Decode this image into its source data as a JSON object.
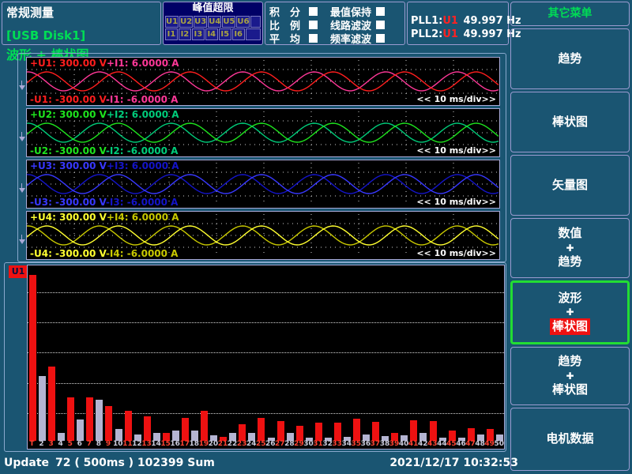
{
  "header": {
    "mode_label": "常规测量",
    "storage_label": "[USB Disk1]",
    "peak_over_limit": {
      "title": "峰值超限",
      "rows": [
        [
          "U1",
          "U2",
          "U3",
          "U4",
          "U5",
          "U6",
          ""
        ],
        [
          "I1",
          "I2",
          "I3",
          "I4",
          "I5",
          "I6",
          ""
        ]
      ]
    },
    "mode_toggles": [
      {
        "id": "integral",
        "c1": "积",
        "c2": "分"
      },
      {
        "id": "ratio",
        "c1": "比",
        "c2": "例"
      },
      {
        "id": "average",
        "c1": "平",
        "c2": "均"
      }
    ],
    "filter_toggles": [
      {
        "id": "max-hold",
        "label": "最值保持"
      },
      {
        "id": "line-filter",
        "label": "线路滤波"
      },
      {
        "id": "freq-filter",
        "label": "频率滤波"
      }
    ],
    "pll": [
      {
        "label": "PLL1:",
        "source": "U1",
        "value": "49.997 Hz"
      },
      {
        "label": "PLL2:",
        "source": "U1",
        "value": "49.997 Hz"
      }
    ]
  },
  "page_title": "波形 + 棒状图",
  "sidebar": {
    "title": "其它菜单",
    "items": [
      {
        "id": "trend",
        "lines": [
          "趋势"
        ]
      },
      {
        "id": "bargraph",
        "lines": [
          "棒状图"
        ]
      },
      {
        "id": "vector",
        "lines": [
          "矢量图"
        ]
      },
      {
        "id": "numeric-trend",
        "lines": [
          "数值",
          "✚",
          "趋势"
        ]
      },
      {
        "id": "waveform-bargraph",
        "lines": [
          "波形",
          "✚",
          "棒状图"
        ],
        "selected": true,
        "highlight_last": true
      },
      {
        "id": "trend-bargraph",
        "lines": [
          "趋势",
          "✚",
          "棒状图"
        ]
      },
      {
        "id": "motor-data",
        "lines": [
          "电机数据"
        ]
      }
    ]
  },
  "status_bar": {
    "update_label": "Update",
    "update_value": "72 ( 500ms ) 102399 Sum",
    "datetime": "2021/12/17  10:32:53"
  },
  "chart_data": [
    {
      "type": "line",
      "title": "波形 (voltage/current waveforms, 4 panels)",
      "timebase_label": "<< 10 ms/div>>",
      "waveform": "sine",
      "cycles_visible": 6.6,
      "i_phase_lead_deg": 85,
      "panels": [
        {
          "top_u": "+U1: 300.00 V",
          "top_i": "+I1: 6.0000 A",
          "bot_u": "-U1: -300.00 V",
          "bot_i": "-I1: -6.0000 A",
          "u_color": "#ff1e1e",
          "i_color": "#ff3898"
        },
        {
          "top_u": "+U2: 300.00 V",
          "top_i": "+I2: 6.0000 A",
          "bot_u": "-U2: -300.00 V",
          "bot_i": "-I2: -6.0000 A",
          "u_color": "#1ee41e",
          "i_color": "#00cc7a"
        },
        {
          "top_u": "+U3: 300.00 V",
          "top_i": "+I3: 6.0000 A",
          "bot_u": "-U3: -300.00 V",
          "bot_i": "-I3: -6.0000 A",
          "u_color": "#3838ff",
          "i_color": "#1414c8"
        },
        {
          "top_u": "+U4: 300.00 V",
          "top_i": "+I4: 6.0000 A",
          "bot_u": "-U4: -300.00 V",
          "bot_i": "-I4: -6.0000 A",
          "u_color": "#ffff30",
          "i_color": "#c8c800"
        }
      ]
    },
    {
      "type": "bar",
      "title": "U1 harmonic bar graph",
      "badge": "U1",
      "categories": [
        "T",
        "2",
        "3",
        "4",
        "5",
        "6",
        "7",
        "8",
        "9",
        "10",
        "11",
        "12",
        "13",
        "14",
        "15",
        "16",
        "17",
        "18",
        "19",
        "20",
        "21",
        "22",
        "23",
        "24",
        "25",
        "26",
        "27",
        "28",
        "29",
        "30",
        "31",
        "32",
        "33",
        "34",
        "35",
        "36",
        "37",
        "38",
        "39",
        "40",
        "41",
        "42",
        "43",
        "44",
        "45",
        "46",
        "47",
        "48",
        "49",
        "50"
      ],
      "values": [
        100,
        39,
        45,
        5,
        26,
        13,
        26,
        25,
        21,
        7,
        18,
        4,
        15,
        5,
        5,
        6,
        14,
        6,
        18,
        3.5,
        2.5,
        5,
        10,
        5,
        14,
        2,
        12,
        5,
        9,
        2,
        11,
        2,
        11,
        2.5,
        13.5,
        4,
        11.5,
        3,
        5,
        3.5,
        12.5,
        5,
        12,
        2,
        6,
        2,
        7.5,
        4,
        7,
        4
      ],
      "unit": "% of full scale (estimated from pixels)",
      "odd_color": "#ee1111",
      "even_color": "#b4b4d2",
      "odd_label_color": "#ff4433",
      "even_label_color": "#ccccdd",
      "ylim": [
        0,
        100
      ],
      "grid": "5 dotted horizontal lines",
      "legend": "none"
    }
  ]
}
